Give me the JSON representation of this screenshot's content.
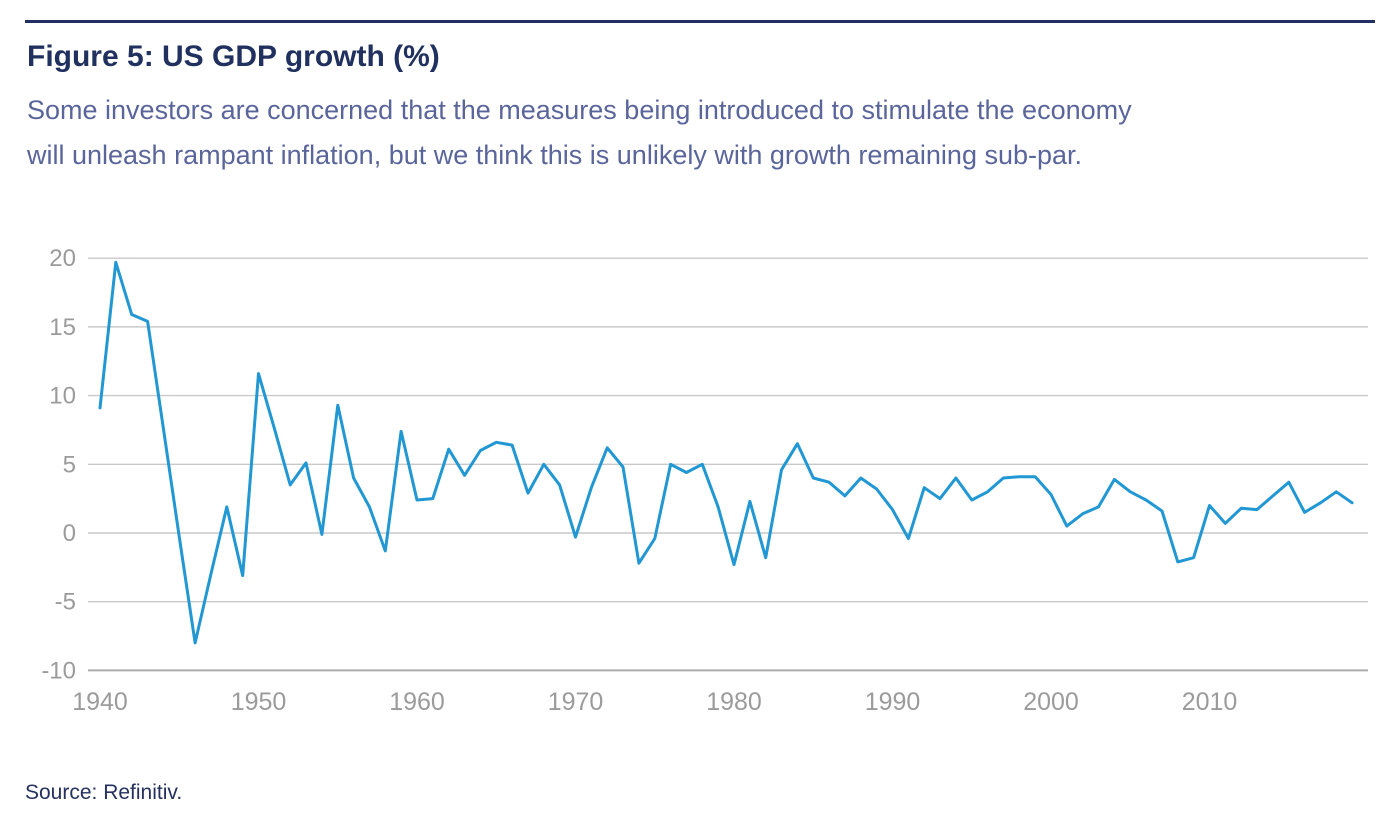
{
  "header": {
    "rule_color": "#20305f",
    "title": "Figure 5: US GDP growth (%)",
    "subtitle_line1": "Some investors are concerned that the measures being introduced to stimulate the economy",
    "subtitle_line2": "will unleash rampant inflation, but we think this is unlikely with growth remaining sub-par."
  },
  "chart_data": {
    "type": "line",
    "title": "Figure 5: US GDP growth (%)",
    "ylabel": "",
    "xlabel": "",
    "ylim": [
      -10,
      20
    ],
    "y_ticks": [
      20,
      15,
      10,
      5,
      0,
      -5,
      -10
    ],
    "x_ticks": [
      1940,
      1950,
      1960,
      1970,
      1980,
      1990,
      2000,
      2010
    ],
    "grid": "horizontal",
    "legend_position": "none",
    "line_color": "#2197d3",
    "grid_color": "#c9c9c9",
    "axis_color": "#ababab",
    "tick_label_color": "#9b9b9b",
    "x": [
      1940,
      1941,
      1942,
      1943,
      1944,
      1945,
      1946,
      1947,
      1948,
      1949,
      1950,
      1951,
      1952,
      1953,
      1954,
      1955,
      1956,
      1957,
      1958,
      1959,
      1960,
      1961,
      1962,
      1963,
      1964,
      1965,
      1966,
      1967,
      1968,
      1969,
      1970,
      1971,
      1972,
      1973,
      1974,
      1975,
      1976,
      1977,
      1978,
      1979,
      1980,
      1981,
      1982,
      1983,
      1984,
      1985,
      1986,
      1987,
      1988,
      1989,
      1990,
      1991,
      1992,
      1993,
      1994,
      1995,
      1996,
      1997,
      1998,
      1999,
      2000,
      2001,
      2002,
      2003,
      2004,
      2005,
      2006,
      2007,
      2008,
      2009,
      2010,
      2011,
      2012,
      2013,
      2014,
      2015,
      2016,
      2017,
      2018,
      2019
    ],
    "series": [
      {
        "name": "US GDP growth (%)",
        "values": [
          9.1,
          19.7,
          15.9,
          15.4,
          7.6,
          -0.3,
          -8.0,
          -3.0,
          1.9,
          -3.1,
          11.6,
          7.6,
          3.5,
          5.1,
          -0.1,
          9.3,
          4.0,
          1.9,
          -1.3,
          7.4,
          2.4,
          2.5,
          6.1,
          4.2,
          6.0,
          6.6,
          6.4,
          2.9,
          5.0,
          3.5,
          -0.3,
          3.3,
          6.2,
          4.8,
          -2.2,
          -0.4,
          5.0,
          4.4,
          5.0,
          1.9,
          -2.3,
          2.3,
          -1.8,
          4.6,
          6.5,
          4.0,
          3.7,
          2.7,
          4.0,
          3.2,
          1.7,
          -0.4,
          3.3,
          2.5,
          4.0,
          2.4,
          3.0,
          4.0,
          4.1,
          4.1,
          2.8,
          0.5,
          1.4,
          1.9,
          3.9,
          3.0,
          2.4,
          1.6,
          -2.1,
          -1.8,
          2.0,
          0.7,
          1.8,
          1.7,
          2.7,
          3.7,
          1.5,
          2.2,
          3.0,
          2.2
        ]
      }
    ]
  },
  "footer": {
    "source": "Source: Refinitiv."
  }
}
